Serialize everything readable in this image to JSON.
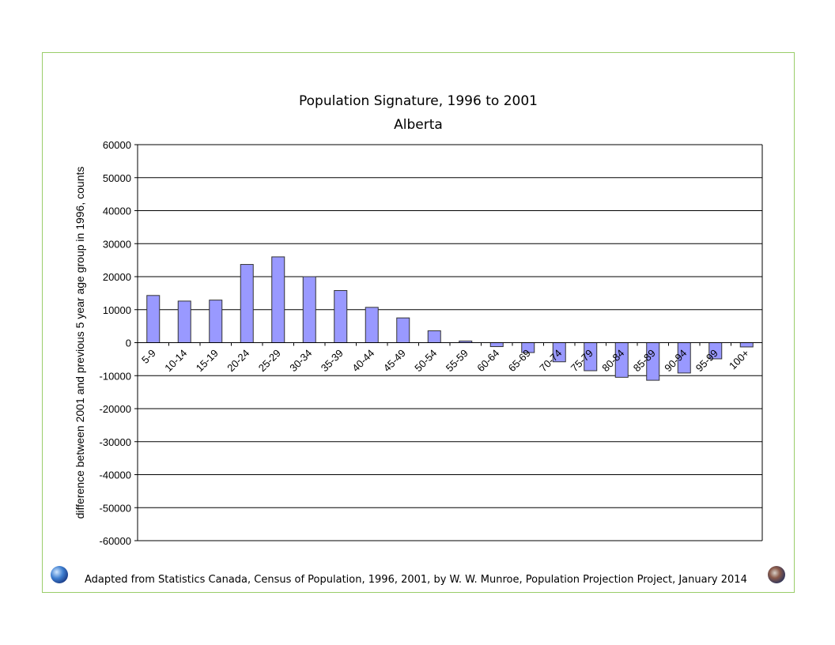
{
  "footer_text": "Adapted from Statistics Canada, Census of Population, 1996, 2001, by W. W. Munroe, Population Projection Project, January 2014",
  "chart_data": {
    "type": "bar",
    "title": "Population Signature, 1996 to 2001",
    "subtitle": "Alberta",
    "xlabel": "",
    "ylabel": "difference between 2001 and previous 5 year age group in 1996, counts",
    "ylim": [
      -60000,
      60000
    ],
    "ytick_step": 10000,
    "grid": true,
    "bar_color": "#9999ff",
    "bar_edge_color": "#333333",
    "categories": [
      "5-9",
      "10-14",
      "15-19",
      "20-24",
      "25-29",
      "30-34",
      "35-39",
      "40-44",
      "45-49",
      "50-54",
      "55-59",
      "60-64",
      "65-69",
      "70-74",
      "75-79",
      "80-84",
      "85-89",
      "90-94",
      "95-99",
      "100+"
    ],
    "values": [
      14300,
      12600,
      12900,
      23700,
      26000,
      20000,
      15800,
      10700,
      7500,
      3600,
      500,
      -1200,
      -3000,
      -5800,
      -8500,
      -10500,
      -11400,
      -9200,
      -4900,
      -1300
    ]
  }
}
